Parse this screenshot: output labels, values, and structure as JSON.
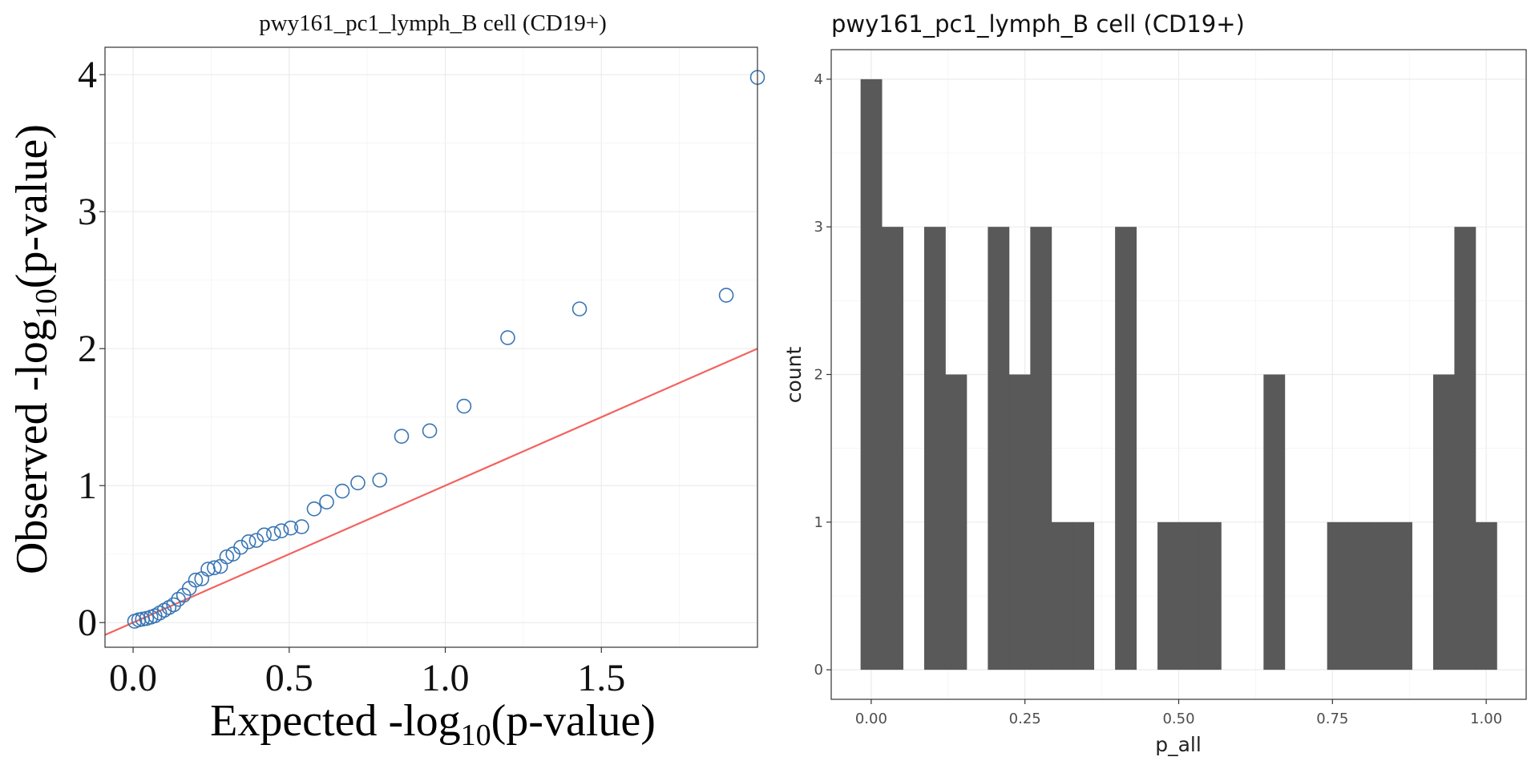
{
  "chart_data": [
    {
      "type": "scatter",
      "title": "pwy161_pc1_lymph_B cell (CD19+)",
      "xlabel_prefix": "Expected -log",
      "xlabel_sub": "10",
      "xlabel_suffix": "(p-value)",
      "ylabel_prefix": "Observed -log",
      "ylabel_sub": "10",
      "ylabel_suffix": "(p-value)",
      "xlim": [
        -0.09,
        2.0
      ],
      "ylim": [
        -0.18,
        4.2
      ],
      "xticks": [
        0.0,
        0.5,
        1.0,
        1.5
      ],
      "xtick_labels": [
        "0.0",
        "0.5",
        "1.0",
        "1.5"
      ],
      "yticks": [
        0,
        1,
        2,
        3,
        4
      ],
      "ytick_labels": [
        "0",
        "1",
        "2",
        "3",
        "4"
      ],
      "grid": true,
      "point_color": "#3a76b4",
      "line_color": "#f4625e",
      "reference_line": {
        "slope": 1,
        "intercept": 0
      },
      "points": [
        [
          0.005,
          0.01
        ],
        [
          0.018,
          0.02
        ],
        [
          0.03,
          0.025
        ],
        [
          0.043,
          0.03
        ],
        [
          0.057,
          0.04
        ],
        [
          0.07,
          0.05
        ],
        [
          0.085,
          0.07
        ],
        [
          0.1,
          0.09
        ],
        [
          0.115,
          0.11
        ],
        [
          0.13,
          0.13
        ],
        [
          0.145,
          0.17
        ],
        [
          0.162,
          0.2
        ],
        [
          0.18,
          0.25
        ],
        [
          0.2,
          0.31
        ],
        [
          0.22,
          0.32
        ],
        [
          0.24,
          0.39
        ],
        [
          0.26,
          0.4
        ],
        [
          0.28,
          0.41
        ],
        [
          0.3,
          0.48
        ],
        [
          0.32,
          0.5
        ],
        [
          0.345,
          0.55
        ],
        [
          0.37,
          0.59
        ],
        [
          0.395,
          0.6
        ],
        [
          0.42,
          0.64
        ],
        [
          0.45,
          0.65
        ],
        [
          0.475,
          0.67
        ],
        [
          0.505,
          0.69
        ],
        [
          0.54,
          0.7
        ],
        [
          0.58,
          0.83
        ],
        [
          0.62,
          0.88
        ],
        [
          0.67,
          0.96
        ],
        [
          0.72,
          1.02
        ],
        [
          0.79,
          1.04
        ],
        [
          0.86,
          1.36
        ],
        [
          0.95,
          1.4
        ],
        [
          1.06,
          1.58
        ],
        [
          1.2,
          2.08
        ],
        [
          1.43,
          2.29
        ],
        [
          1.9,
          2.39
        ],
        [
          2.0,
          3.98
        ]
      ]
    },
    {
      "type": "bar",
      "subtype": "histogram",
      "title": "pwy161_pc1_lymph_B cell (CD19+)",
      "xlabel": "p_all",
      "ylabel": "count",
      "xlim": [
        -0.065,
        1.065
      ],
      "ylim": [
        -0.2,
        4.2
      ],
      "xticks": [
        0.0,
        0.25,
        0.5,
        0.75,
        1.0
      ],
      "xtick_labels": [
        "0.00",
        "0.25",
        "0.50",
        "0.75",
        "1.00"
      ],
      "yticks": [
        0,
        1,
        2,
        3,
        4
      ],
      "ytick_labels": [
        "0",
        "1",
        "2",
        "3",
        "4"
      ],
      "grid": true,
      "bar_color": "#595959",
      "bin_width": 0.0345,
      "bin_centers": [
        0.0,
        0.0345,
        0.069,
        0.1034,
        0.1379,
        0.1724,
        0.2069,
        0.2414,
        0.2759,
        0.3103,
        0.3448,
        0.3793,
        0.4138,
        0.4483,
        0.4828,
        0.5172,
        0.5517,
        0.5862,
        0.6207,
        0.6552,
        0.6897,
        0.7241,
        0.7586,
        0.7931,
        0.8276,
        0.8621,
        0.8966,
        0.931,
        0.9655,
        1.0
      ],
      "counts": [
        4,
        3,
        0,
        3,
        2,
        0,
        3,
        2,
        3,
        1,
        1,
        0,
        3,
        0,
        1,
        1,
        1,
        0,
        0,
        2,
        0,
        0,
        1,
        1,
        1,
        1,
        0,
        2,
        3,
        1
      ]
    }
  ]
}
